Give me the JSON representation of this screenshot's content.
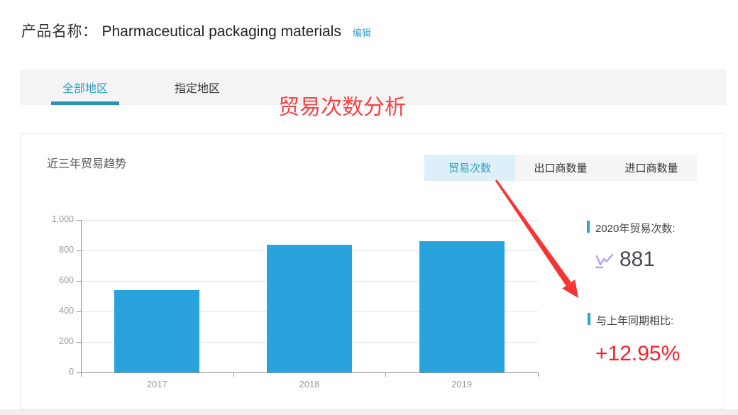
{
  "header": {
    "label": "产品名称：",
    "product_name": "Pharmaceutical packaging materials",
    "edit_link": "编辑"
  },
  "region_tabs": [
    {
      "label": "全部地区",
      "active": true
    },
    {
      "label": "指定地区",
      "active": false
    }
  ],
  "annotation": {
    "text": "贸易次数分析",
    "color": "#fa4040"
  },
  "panel": {
    "title": "近三年贸易趋势",
    "metric_tabs": [
      {
        "label": "贸易次数",
        "active": true
      },
      {
        "label": "出口商数量",
        "active": false
      },
      {
        "label": "进口商数量",
        "active": false
      }
    ]
  },
  "chart_data": {
    "type": "bar",
    "title": "近三年贸易趋势",
    "categories": [
      "2017",
      "2018",
      "2019"
    ],
    "values": [
      540,
      835,
      862
    ],
    "xlabel": "",
    "ylabel": "",
    "ylim": [
      0,
      1000
    ],
    "yticks": [
      0,
      200,
      400,
      600,
      800,
      1000
    ],
    "ytick_labels": [
      "0",
      "200",
      "400",
      "600",
      "800",
      "1,000"
    ],
    "bar_color": "#29a3db",
    "grid": true,
    "legend_position": "none"
  },
  "stats": {
    "current_year": {
      "label": "2020年贸易次数:",
      "value": "881",
      "icon": "line-chart-icon",
      "accent_color": "#2aa7c5"
    },
    "comparison": {
      "label": "与上年同期相比:",
      "value": "+12.95%",
      "value_color": "#f5222d"
    }
  },
  "colors": {
    "accent_teal": "#2f9fc1",
    "bar_blue": "#29a3db",
    "annotation_red": "#fa4040",
    "percent_red": "#f5222d"
  }
}
